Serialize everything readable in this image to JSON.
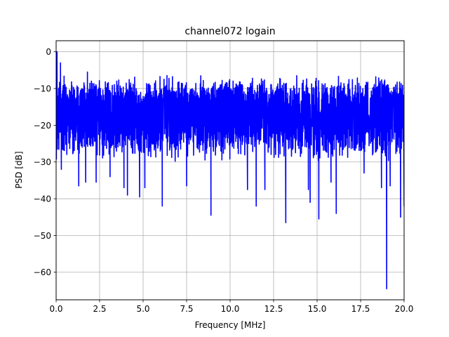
{
  "chart_data": {
    "type": "line",
    "title": "channel072 logain",
    "xlabel": "Frequency [MHz]",
    "ylabel": "PSD [dB]",
    "xlim": [
      0,
      20
    ],
    "ylim": [
      -67.5,
      3
    ],
    "grid": true,
    "legend": "none",
    "x_ticks": [
      0,
      2.5,
      5,
      7.5,
      10,
      12.5,
      15,
      17.5,
      20
    ],
    "x_tick_labels": [
      "0.0",
      "2.5",
      "5.0",
      "7.5",
      "10.0",
      "12.5",
      "15.0",
      "17.5",
      "20.0"
    ],
    "y_ticks": [
      0,
      -10,
      -20,
      -30,
      -40,
      -50,
      -60
    ],
    "y_tick_labels": [
      "0",
      "−10",
      "−20",
      "−30",
      "−40",
      "−50",
      "−60"
    ],
    "series": [
      {
        "color": "#0000ff",
        "baseline_db": -17.5,
        "envelope_upper_db": -9,
        "envelope_lower_db": -27,
        "dips": [
          {
            "x": 0.05,
            "y": 0
          },
          {
            "x": 0.25,
            "y": -3
          },
          {
            "x": 0.3,
            "y": -32
          },
          {
            "x": 1.3,
            "y": -36.5
          },
          {
            "x": 1.7,
            "y": -35.5
          },
          {
            "x": 1.8,
            "y": -5.5
          },
          {
            "x": 2.3,
            "y": -35.5
          },
          {
            "x": 3.1,
            "y": -34
          },
          {
            "x": 3.9,
            "y": -37
          },
          {
            "x": 4.1,
            "y": -39
          },
          {
            "x": 4.8,
            "y": -39.5
          },
          {
            "x": 5.1,
            "y": -37
          },
          {
            "x": 6.1,
            "y": -42
          },
          {
            "x": 7.5,
            "y": -36.5
          },
          {
            "x": 8.9,
            "y": -44.5
          },
          {
            "x": 11.0,
            "y": -37.5
          },
          {
            "x": 11.5,
            "y": -42
          },
          {
            "x": 12.0,
            "y": -37.5
          },
          {
            "x": 13.2,
            "y": -46.5
          },
          {
            "x": 14.5,
            "y": -37.5
          },
          {
            "x": 14.6,
            "y": -41
          },
          {
            "x": 15.1,
            "y": -45.5
          },
          {
            "x": 15.8,
            "y": -35.5
          },
          {
            "x": 16.1,
            "y": -44
          },
          {
            "x": 17.7,
            "y": -33
          },
          {
            "x": 18.7,
            "y": -37
          },
          {
            "x": 19.0,
            "y": -64.5
          },
          {
            "x": 19.2,
            "y": -36.5
          },
          {
            "x": 19.8,
            "y": -45
          },
          {
            "x": 20.0,
            "y": -42
          }
        ]
      }
    ]
  }
}
